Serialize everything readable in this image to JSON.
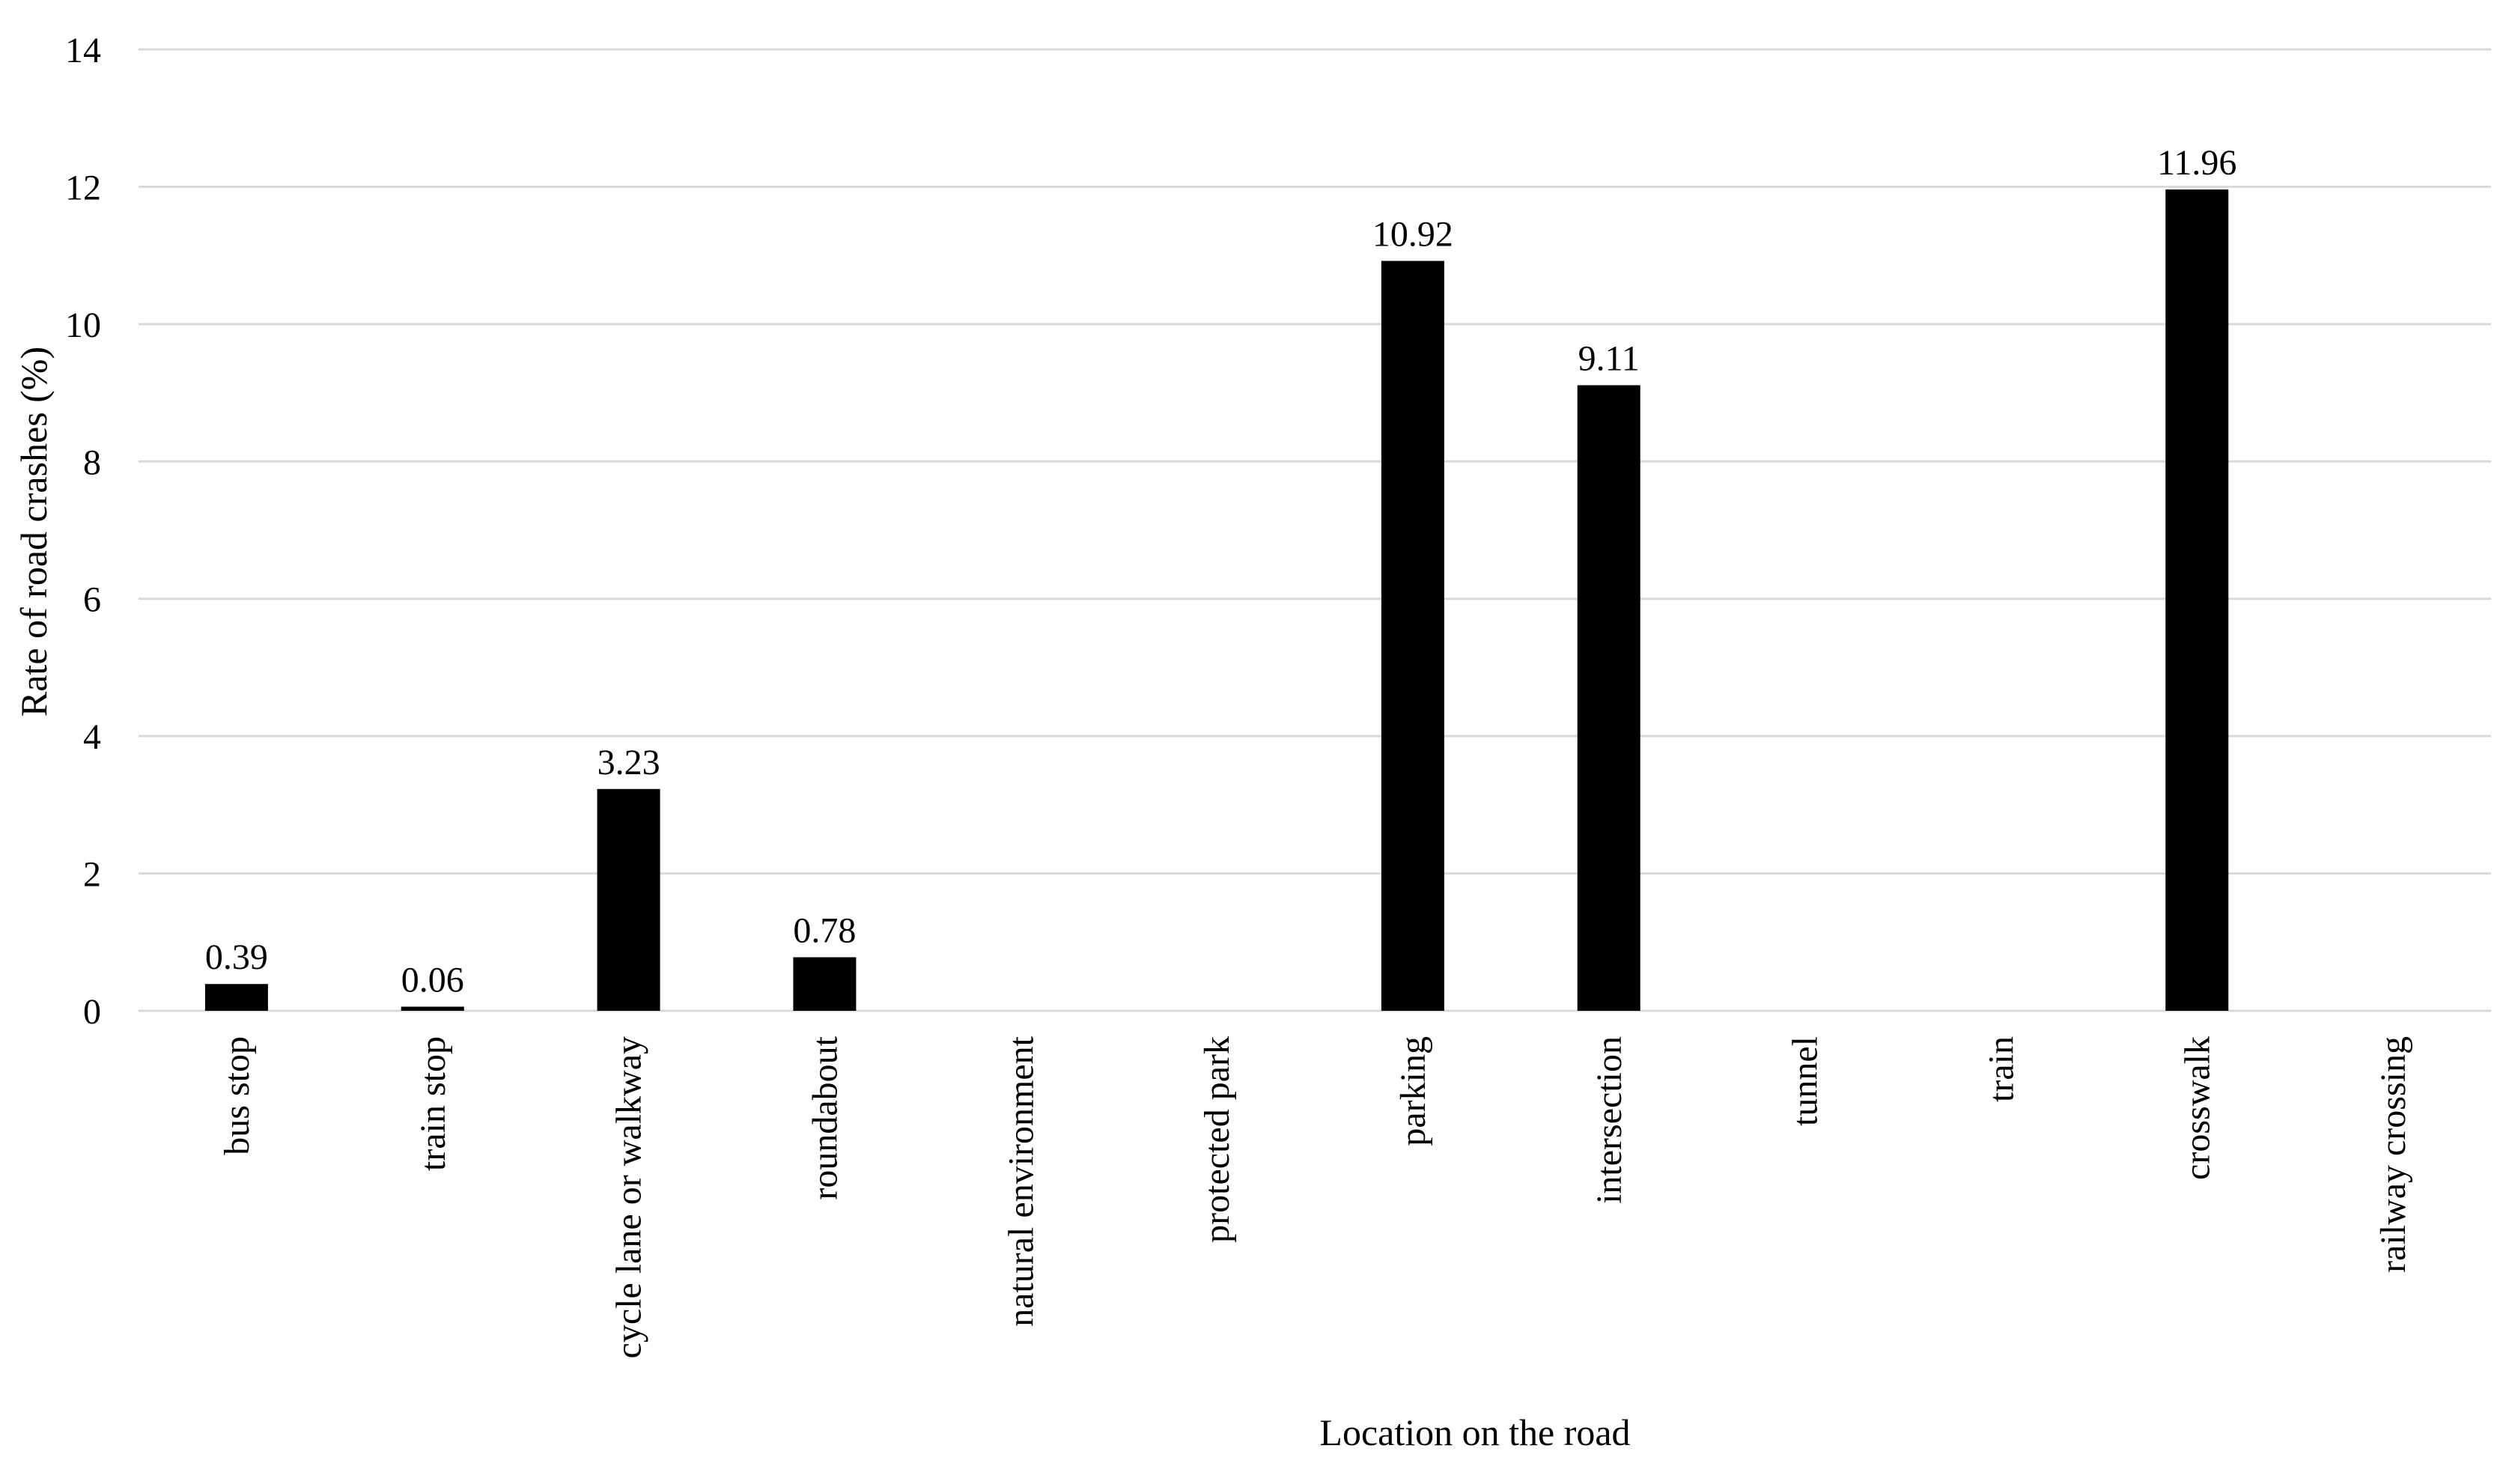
{
  "chart_data": {
    "type": "bar",
    "title": "",
    "xlabel": "Location on the road",
    "ylabel": "Rate of road crashes (%)",
    "ylim": [
      0,
      14
    ],
    "yticks": [
      0,
      2,
      4,
      6,
      8,
      10,
      12,
      14
    ],
    "grid": true,
    "legend": "none",
    "bar_color": "#000000",
    "grid_color": "#d9d9d9",
    "categories": [
      "bus stop",
      "train stop",
      "cycle lane or walkway",
      "roundabout",
      "natural environment",
      "protected park",
      "parking",
      "intersection",
      "tunnel",
      "train",
      "crosswalk",
      "railway crossing"
    ],
    "values": [
      0.39,
      0.06,
      3.23,
      0.78,
      0,
      0,
      10.92,
      9.11,
      0,
      0,
      11.96,
      0
    ],
    "data_labels": [
      "0.39",
      "0.06",
      "3.23",
      "0.78",
      null,
      null,
      "10.92",
      "9.11",
      null,
      null,
      "11.96",
      null
    ]
  }
}
